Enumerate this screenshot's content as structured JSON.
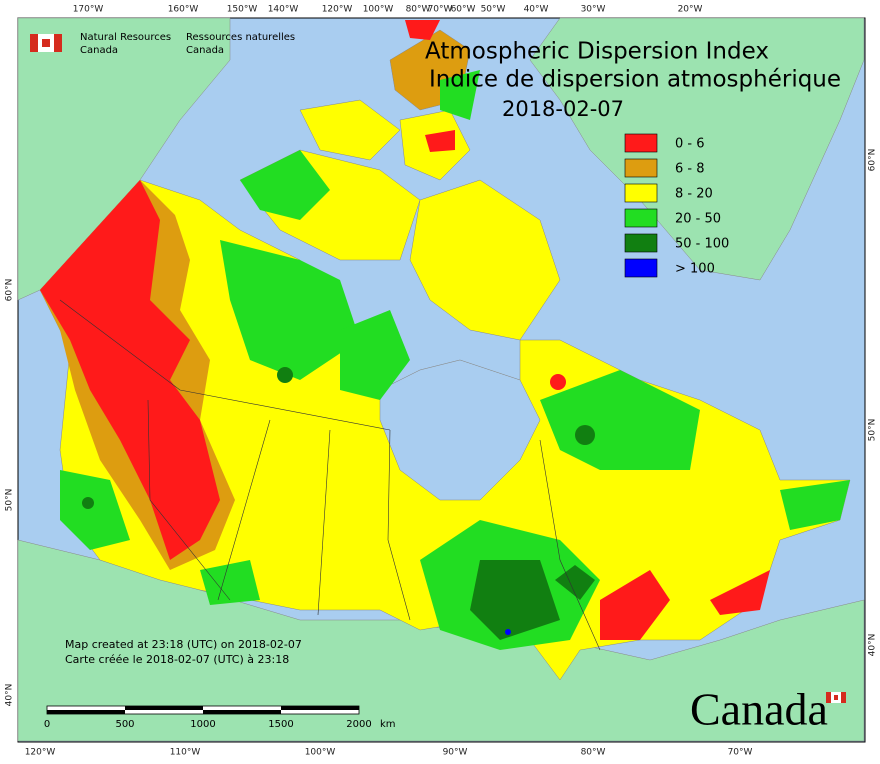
{
  "header": {
    "department_en": [
      "Natural Resources",
      "Canada"
    ],
    "department_fr": [
      "Ressources naturelles",
      "Canada"
    ]
  },
  "title": {
    "en": "Atmospheric Dispersion Index",
    "fr": "Indice de dispersion atmosphérique",
    "date": "2018-02-07"
  },
  "legend": [
    {
      "label": "0 - 6",
      "color": "#ff1a1a"
    },
    {
      "label": "6 - 8",
      "color": "#dd9d10"
    },
    {
      "label": "8 - 20",
      "color": "#ffff00"
    },
    {
      "label": "20 - 50",
      "color": "#22dd22"
    },
    {
      "label": "50 - 100",
      "color": "#117f11"
    },
    {
      "label": "> 100",
      "color": "#0000ff"
    }
  ],
  "graticule": {
    "top": [
      "170°W",
      "160°W",
      "150°W",
      "140°W",
      "120°W",
      "100°W",
      "80°W",
      "70°W",
      "60°W",
      "50°W",
      "40°W",
      "30°W",
      "20°W"
    ],
    "bottom": [
      "120°W",
      "110°W",
      "100°W",
      "90°W",
      "80°W",
      "70°W"
    ],
    "left": [
      "60°N",
      "50°N",
      "40°N"
    ],
    "right": [
      "60°N",
      "50°N",
      "40°N"
    ]
  },
  "scale_bar": {
    "ticks": [
      "0",
      "500",
      "1000",
      "1500",
      "2000"
    ],
    "unit": "km"
  },
  "footer": {
    "created_en": "Map created at 23:18 (UTC) on 2018-02-07",
    "created_fr": "Carte créée le 2018-02-07 (UTC) à 23:18"
  },
  "wordmark": "Canada"
}
